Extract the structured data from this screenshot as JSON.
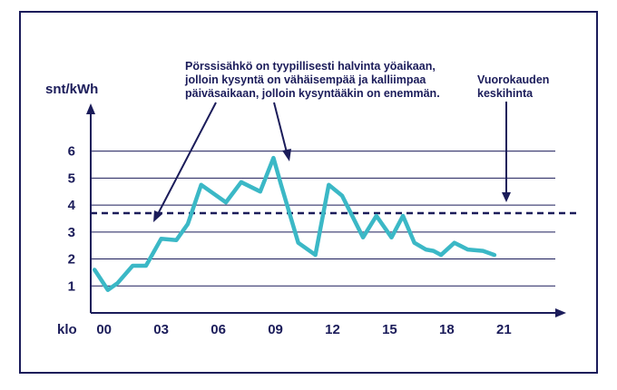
{
  "chart_data": {
    "type": "line",
    "ylabel": "snt/kWh",
    "xlabel": "klo",
    "x_ticks": [
      {
        "value": 0,
        "label": "00"
      },
      {
        "value": 3,
        "label": "03"
      },
      {
        "value": 6,
        "label": "06"
      },
      {
        "value": 9,
        "label": "09"
      },
      {
        "value": 12,
        "label": "12"
      },
      {
        "value": 15,
        "label": "15"
      },
      {
        "value": 18,
        "label": "18"
      },
      {
        "value": 21,
        "label": "21"
      }
    ],
    "y_ticks": [
      1,
      2,
      3,
      4,
      5,
      6
    ],
    "xlim": [
      -0.7,
      23.7
    ],
    "ylim": [
      0,
      7.3
    ],
    "grid": true,
    "series": [
      {
        "color": "#3bb8c6",
        "x": [
          -0.5,
          0.2,
          0.7,
          1.5,
          2.2,
          3.0,
          3.8,
          4.4,
          5.1,
          5.8,
          6.4,
          7.2,
          8.2,
          8.9,
          9.3,
          10.2,
          11.1,
          11.8,
          12.5,
          13.6,
          14.3,
          15.1,
          15.7,
          16.3,
          16.9,
          17.3,
          17.7,
          18.4,
          19.1,
          19.9,
          20.5
        ],
        "y": [
          1.6,
          0.85,
          1.1,
          1.75,
          1.75,
          2.75,
          2.7,
          3.3,
          4.75,
          4.4,
          4.1,
          4.85,
          4.5,
          5.75,
          4.75,
          2.6,
          2.15,
          4.75,
          4.35,
          2.8,
          3.6,
          2.8,
          3.6,
          2.6,
          2.35,
          2.3,
          2.15,
          2.6,
          2.35,
          2.3,
          2.15
        ]
      }
    ],
    "reference_line": {
      "y": 3.7,
      "style": "dashed",
      "color": "#1b1c5a",
      "label": "Vuorokauden keskihinta"
    },
    "annotations": [
      {
        "lines": [
          "Pörssisähkö on tyypillisesti  halvinta yöaikaan,",
          "jolloin kysyntä on vähäisempää ja kalliimpaa",
          "päiväsaikaan, jolloin kysyntääkin on enemmän."
        ]
      },
      {
        "lines": [
          "Vuorokauden",
          "keskihinta"
        ]
      }
    ],
    "colors": {
      "axis": "#1b1c5a",
      "line": "#3bb8c6",
      "frame": "#1b1c5a"
    }
  }
}
